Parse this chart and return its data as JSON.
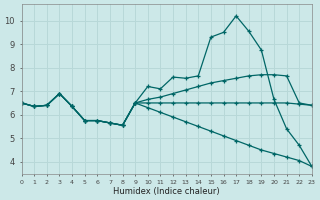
{
  "xlabel": "Humidex (Indice chaleur)",
  "bg_color": "#cce8e8",
  "grid_color": "#b8d8d8",
  "line_color": "#006666",
  "xlim": [
    0,
    23
  ],
  "ylim": [
    3.5,
    10.7
  ],
  "yticks": [
    4,
    5,
    6,
    7,
    8,
    9,
    10
  ],
  "xticks": [
    0,
    1,
    2,
    3,
    4,
    5,
    6,
    7,
    8,
    9,
    10,
    11,
    12,
    13,
    14,
    15,
    16,
    17,
    18,
    19,
    20,
    21,
    22,
    23
  ],
  "series": [
    {
      "x": [
        0,
        1,
        2,
        3,
        4,
        5,
        6,
        7,
        8,
        9,
        10,
        11,
        12,
        13,
        14,
        15,
        16,
        17,
        18,
        19,
        20,
        21,
        22,
        23
      ],
      "y": [
        6.5,
        6.35,
        6.4,
        6.9,
        6.35,
        5.75,
        5.75,
        5.65,
        5.55,
        6.5,
        7.2,
        7.1,
        7.6,
        7.55,
        7.65,
        9.3,
        9.5,
        10.2,
        9.55,
        8.75,
        6.65,
        5.4,
        4.7,
        3.8
      ]
    },
    {
      "x": [
        0,
        1,
        2,
        3,
        4,
        5,
        6,
        7,
        8,
        9,
        10,
        11,
        12,
        13,
        14,
        15,
        16,
        17,
        18,
        19,
        20,
        21,
        22,
        23
      ],
      "y": [
        6.5,
        6.35,
        6.4,
        6.9,
        6.35,
        5.75,
        5.75,
        5.65,
        5.55,
        6.5,
        6.65,
        6.75,
        6.9,
        7.05,
        7.2,
        7.35,
        7.45,
        7.55,
        7.65,
        7.7,
        7.7,
        7.65,
        6.5,
        6.4
      ]
    },
    {
      "x": [
        0,
        1,
        2,
        3,
        4,
        5,
        6,
        7,
        8,
        9,
        10,
        11,
        12,
        13,
        14,
        15,
        16,
        17,
        18,
        19,
        20,
        21,
        22,
        23
      ],
      "y": [
        6.5,
        6.35,
        6.4,
        6.9,
        6.35,
        5.75,
        5.75,
        5.65,
        5.55,
        6.5,
        6.5,
        6.5,
        6.5,
        6.5,
        6.5,
        6.5,
        6.5,
        6.5,
        6.5,
        6.5,
        6.5,
        6.5,
        6.45,
        6.4
      ]
    },
    {
      "x": [
        0,
        1,
        2,
        3,
        4,
        5,
        6,
        7,
        8,
        9,
        10,
        11,
        12,
        13,
        14,
        15,
        16,
        17,
        18,
        19,
        20,
        21,
        22,
        23
      ],
      "y": [
        6.5,
        6.35,
        6.4,
        6.9,
        6.35,
        5.75,
        5.75,
        5.65,
        5.55,
        6.5,
        6.3,
        6.1,
        5.9,
        5.7,
        5.5,
        5.3,
        5.1,
        4.9,
        4.7,
        4.5,
        4.35,
        4.2,
        4.05,
        3.8
      ]
    }
  ]
}
